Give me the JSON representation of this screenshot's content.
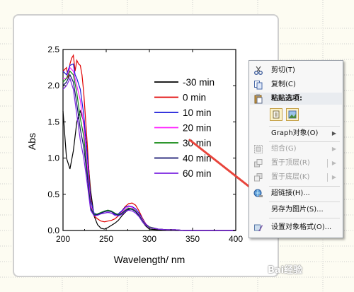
{
  "chart_data": {
    "type": "line",
    "xlabel": "Wavelength/ nm",
    "ylabel": "Abs",
    "xlim": [
      200,
      400
    ],
    "ylim": [
      0,
      2.5
    ],
    "xticks": [
      "200",
      "250",
      "300",
      "350",
      "400"
    ],
    "yticks": [
      "0.0",
      "0.5",
      "1.0",
      "1.5",
      "2.0",
      "2.5"
    ],
    "legend_position": "right",
    "series": [
      {
        "name": "-30 min",
        "color": "#000000",
        "x": [
          200,
          204,
          208,
          212,
          216,
          220,
          224,
          228,
          232,
          236,
          240,
          244,
          248,
          252,
          256,
          260,
          264,
          268,
          272,
          276,
          280,
          284,
          288,
          292,
          296,
          300,
          310,
          320,
          330,
          340,
          350,
          360,
          380,
          400
        ],
        "y": [
          1.65,
          1.0,
          0.85,
          1.1,
          1.5,
          1.65,
          1.5,
          1.1,
          0.55,
          0.2,
          0.08,
          0.03,
          0.02,
          0.04,
          0.07,
          0.1,
          0.14,
          0.2,
          0.25,
          0.29,
          0.3,
          0.27,
          0.2,
          0.12,
          0.06,
          0.02,
          0.01,
          0.01,
          0.0,
          0.0,
          0.0,
          0.0,
          0.0,
          0.0
        ]
      },
      {
        "name": "0 min",
        "color": "#e00000",
        "x": [
          200,
          204,
          206,
          208,
          210,
          212,
          214,
          216,
          218,
          220,
          222,
          224,
          228,
          232,
          236,
          240,
          244,
          248,
          252,
          256,
          260,
          264,
          268,
          272,
          276,
          280,
          284,
          288,
          292,
          296,
          300,
          310,
          320,
          330,
          340,
          350,
          360,
          380,
          400
        ],
        "y": [
          2.2,
          2.25,
          2.1,
          2.3,
          2.38,
          2.42,
          2.2,
          2.35,
          2.3,
          2.28,
          2.15,
          1.9,
          1.2,
          0.45,
          0.2,
          0.16,
          0.13,
          0.12,
          0.13,
          0.14,
          0.16,
          0.2,
          0.27,
          0.33,
          0.37,
          0.38,
          0.35,
          0.27,
          0.17,
          0.09,
          0.04,
          0.02,
          0.01,
          0.01,
          0.0,
          0.0,
          0.0,
          0.0,
          0.0
        ]
      },
      {
        "name": "10 min",
        "color": "#1a1ad8",
        "x": [
          200,
          204,
          208,
          212,
          214,
          216,
          220,
          224,
          228,
          232,
          236,
          240,
          244,
          248,
          252,
          256,
          260,
          264,
          268,
          272,
          276,
          280,
          284,
          288,
          292,
          296,
          300,
          310,
          320,
          330,
          340,
          350,
          360,
          380,
          400
        ],
        "y": [
          2.2,
          2.15,
          2.28,
          2.3,
          2.15,
          2.1,
          1.95,
          1.6,
          1.05,
          0.42,
          0.24,
          0.22,
          0.23,
          0.24,
          0.25,
          0.24,
          0.22,
          0.23,
          0.27,
          0.32,
          0.34,
          0.33,
          0.3,
          0.24,
          0.16,
          0.09,
          0.05,
          0.02,
          0.01,
          0.01,
          0.0,
          0.0,
          0.0,
          0.0,
          0.0
        ]
      },
      {
        "name": "20 min",
        "color": "#ff22ff",
        "x": [
          200,
          204,
          208,
          212,
          216,
          220,
          224,
          228,
          232,
          236,
          240,
          244,
          248,
          252,
          256,
          260,
          264,
          268,
          272,
          276,
          280,
          284,
          288,
          292,
          296,
          300,
          310,
          320,
          330,
          340,
          350,
          360,
          380,
          400
        ],
        "y": [
          2.1,
          2.1,
          2.25,
          2.2,
          2.0,
          1.8,
          1.45,
          0.9,
          0.35,
          0.22,
          0.22,
          0.24,
          0.26,
          0.27,
          0.26,
          0.23,
          0.22,
          0.25,
          0.3,
          0.33,
          0.32,
          0.28,
          0.22,
          0.15,
          0.09,
          0.05,
          0.02,
          0.01,
          0.01,
          0.0,
          0.0,
          0.0,
          0.0,
          0.0
        ]
      },
      {
        "name": "30 min",
        "color": "#118811",
        "x": [
          200,
          204,
          208,
          212,
          216,
          220,
          224,
          228,
          232,
          236,
          240,
          244,
          248,
          252,
          256,
          260,
          264,
          268,
          272,
          276,
          280,
          284,
          288,
          292,
          296,
          300,
          310,
          320,
          330,
          340,
          350,
          360,
          380,
          400
        ],
        "y": [
          2.05,
          2.1,
          2.2,
          2.15,
          1.9,
          1.55,
          1.3,
          0.8,
          0.32,
          0.22,
          0.23,
          0.25,
          0.27,
          0.28,
          0.27,
          0.24,
          0.22,
          0.24,
          0.28,
          0.31,
          0.3,
          0.27,
          0.21,
          0.14,
          0.08,
          0.05,
          0.02,
          0.01,
          0.01,
          0.0,
          0.0,
          0.0,
          0.0,
          0.0
        ]
      },
      {
        "name": "40 min",
        "color": "#10106e",
        "x": [
          200,
          204,
          208,
          212,
          216,
          220,
          224,
          228,
          232,
          236,
          240,
          244,
          248,
          252,
          256,
          260,
          264,
          268,
          272,
          276,
          280,
          284,
          288,
          292,
          296,
          300,
          310,
          320,
          330,
          340,
          350,
          360,
          380,
          400
        ],
        "y": [
          2.0,
          2.05,
          2.15,
          2.05,
          1.75,
          1.4,
          1.15,
          0.75,
          0.3,
          0.21,
          0.22,
          0.24,
          0.26,
          0.27,
          0.26,
          0.23,
          0.21,
          0.23,
          0.27,
          0.3,
          0.29,
          0.26,
          0.2,
          0.13,
          0.08,
          0.04,
          0.02,
          0.01,
          0.01,
          0.0,
          0.0,
          0.0,
          0.0,
          0.0
        ]
      },
      {
        "name": "60 min",
        "color": "#7a22e0",
        "x": [
          200,
          204,
          208,
          212,
          216,
          220,
          224,
          228,
          232,
          236,
          240,
          244,
          248,
          252,
          256,
          260,
          264,
          268,
          272,
          276,
          280,
          284,
          288,
          292,
          296,
          300,
          310,
          320,
          330,
          340,
          350,
          360,
          380,
          400
        ],
        "y": [
          1.95,
          2.0,
          2.1,
          1.95,
          1.6,
          1.25,
          1.0,
          0.65,
          0.28,
          0.2,
          0.21,
          0.23,
          0.24,
          0.25,
          0.24,
          0.21,
          0.2,
          0.22,
          0.26,
          0.28,
          0.27,
          0.24,
          0.19,
          0.12,
          0.07,
          0.04,
          0.02,
          0.01,
          0.01,
          0.0,
          0.0,
          0.0,
          0.0,
          0.0
        ]
      }
    ]
  },
  "context_menu": {
    "items": [
      {
        "label": "剪切(T)",
        "icon": "scissors-icon",
        "enabled": true
      },
      {
        "label": "复制(C)",
        "icon": "copy-icon",
        "enabled": true
      },
      {
        "label": "粘贴选项:",
        "icon": "paste-icon",
        "enabled": true
      },
      {
        "label": "Graph对象(O)",
        "icon": "",
        "enabled": true
      },
      {
        "label": "组合(G)",
        "icon": "group-icon",
        "enabled": false
      },
      {
        "label": "置于顶层(R)",
        "icon": "bring-front-icon",
        "enabled": false
      },
      {
        "label": "置于底层(K)",
        "icon": "send-back-icon",
        "enabled": false
      },
      {
        "label": "超链接(H)...",
        "icon": "hyperlink-icon",
        "enabled": true
      },
      {
        "label": "另存为图片(S)...",
        "icon": "",
        "enabled": true
      },
      {
        "label": "设置对象格式(O)...",
        "icon": "format-object-icon",
        "enabled": true
      }
    ]
  },
  "colors": {
    "annotation_arrow": "#e8453c",
    "menu_bg": "#f7f7f7",
    "menu_header_bg": "#e9ecf0"
  },
  "watermark": {
    "text": "Bai经验"
  }
}
